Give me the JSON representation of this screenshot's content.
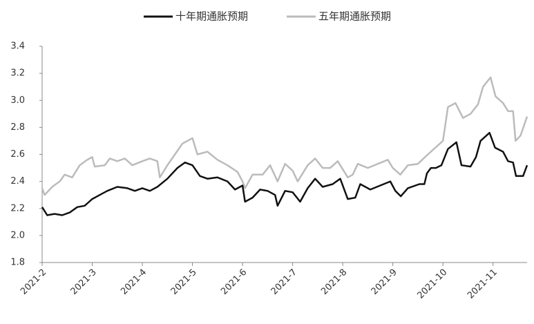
{
  "chart_data": {
    "type": "line",
    "xlim": [
      2,
      11.68
    ],
    "ylim": [
      1.8,
      3.4
    ],
    "xticks": [
      {
        "value": 2,
        "label": "2021-2"
      },
      {
        "value": 3,
        "label": "2021-3"
      },
      {
        "value": 4,
        "label": "2021-4"
      },
      {
        "value": 5,
        "label": "2021-5"
      },
      {
        "value": 6,
        "label": "2021-6"
      },
      {
        "value": 7,
        "label": "2021-7"
      },
      {
        "value": 8,
        "label": "2021-8"
      },
      {
        "value": 9,
        "label": "2021-9"
      },
      {
        "value": 10,
        "label": "2021-10"
      },
      {
        "value": 11,
        "label": "2021-11"
      }
    ],
    "yticks": [
      {
        "value": 1.8,
        "label": "1.8"
      },
      {
        "value": 2.0,
        "label": "2.0"
      },
      {
        "value": 2.2,
        "label": "2.2"
      },
      {
        "value": 2.4,
        "label": "2.4"
      },
      {
        "value": 2.6,
        "label": "2.6"
      },
      {
        "value": 2.8,
        "label": "2.8"
      },
      {
        "value": 3.0,
        "label": "3.0"
      },
      {
        "value": 3.2,
        "label": "3.2"
      },
      {
        "value": 3.4,
        "label": "3.4"
      }
    ],
    "grid": false,
    "series": [
      {
        "name": "十年期通胀预期",
        "color": "#111111",
        "x": [
          2.0,
          2.1,
          2.25,
          2.4,
          2.55,
          2.7,
          2.85,
          3.0,
          3.15,
          3.3,
          3.5,
          3.7,
          3.85,
          4.0,
          4.15,
          4.3,
          4.5,
          4.7,
          4.85,
          5.0,
          5.15,
          5.3,
          5.5,
          5.7,
          5.85,
          6.0,
          6.05,
          6.2,
          6.35,
          6.5,
          6.65,
          6.7,
          6.85,
          7.0,
          7.15,
          7.3,
          7.45,
          7.6,
          7.8,
          7.95,
          8.1,
          8.25,
          8.35,
          8.55,
          8.75,
          8.95,
          9.05,
          9.16,
          9.3,
          9.53,
          9.63,
          9.68,
          9.76,
          9.86,
          9.97,
          10.1,
          10.27,
          10.37,
          10.55,
          10.66,
          10.75,
          10.93,
          11.04,
          11.2,
          11.3,
          11.4,
          11.46,
          11.6,
          11.68
        ],
        "values": [
          2.21,
          2.15,
          2.16,
          2.15,
          2.17,
          2.21,
          2.22,
          2.27,
          2.3,
          2.33,
          2.36,
          2.35,
          2.33,
          2.35,
          2.33,
          2.36,
          2.42,
          2.5,
          2.54,
          2.52,
          2.44,
          2.42,
          2.43,
          2.4,
          2.34,
          2.37,
          2.25,
          2.28,
          2.34,
          2.33,
          2.3,
          2.22,
          2.33,
          2.32,
          2.25,
          2.35,
          2.42,
          2.36,
          2.38,
          2.42,
          2.27,
          2.28,
          2.38,
          2.34,
          2.37,
          2.4,
          2.33,
          2.29,
          2.35,
          2.38,
          2.38,
          2.46,
          2.5,
          2.5,
          2.52,
          2.64,
          2.69,
          2.52,
          2.51,
          2.58,
          2.7,
          2.76,
          2.65,
          2.62,
          2.55,
          2.54,
          2.44,
          2.44,
          2.52
        ]
      },
      {
        "name": "五年期通胀预期",
        "color": "#bbbbbb",
        "x": [
          2.0,
          2.05,
          2.2,
          2.35,
          2.45,
          2.6,
          2.75,
          2.9,
          3.0,
          3.05,
          3.25,
          3.35,
          3.5,
          3.65,
          3.8,
          4.0,
          4.15,
          4.3,
          4.35,
          4.5,
          4.65,
          4.8,
          5.0,
          5.1,
          5.3,
          5.5,
          5.7,
          5.9,
          6.0,
          6.05,
          6.2,
          6.4,
          6.55,
          6.7,
          6.85,
          7.0,
          7.1,
          7.3,
          7.45,
          7.6,
          7.75,
          7.9,
          8.1,
          8.2,
          8.3,
          8.5,
          8.7,
          8.9,
          9.0,
          9.15,
          9.3,
          9.5,
          9.7,
          9.85,
          10.0,
          10.1,
          10.25,
          10.4,
          10.55,
          10.7,
          10.8,
          10.95,
          11.05,
          11.2,
          11.3,
          11.4,
          11.45,
          11.55,
          11.68
        ],
        "values": [
          2.35,
          2.3,
          2.36,
          2.4,
          2.45,
          2.43,
          2.52,
          2.56,
          2.58,
          2.51,
          2.52,
          2.57,
          2.55,
          2.57,
          2.52,
          2.55,
          2.57,
          2.55,
          2.43,
          2.52,
          2.6,
          2.68,
          2.72,
          2.6,
          2.62,
          2.56,
          2.52,
          2.47,
          2.4,
          2.35,
          2.45,
          2.45,
          2.52,
          2.4,
          2.53,
          2.48,
          2.4,
          2.52,
          2.57,
          2.5,
          2.5,
          2.55,
          2.43,
          2.45,
          2.53,
          2.5,
          2.53,
          2.56,
          2.5,
          2.45,
          2.52,
          2.53,
          2.6,
          2.65,
          2.7,
          2.95,
          2.98,
          2.87,
          2.9,
          2.97,
          3.1,
          3.17,
          3.03,
          2.98,
          2.92,
          2.92,
          2.7,
          2.74,
          2.88
        ]
      }
    ]
  }
}
